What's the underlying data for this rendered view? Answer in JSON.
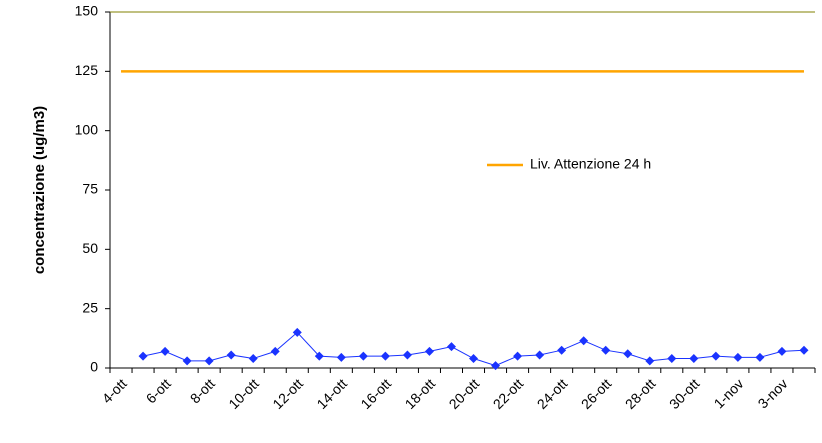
{
  "chart_data": {
    "type": "line",
    "y_label": "concentrazione (ug/m3)",
    "categories": [
      "4-ott",
      null,
      "6-ott",
      null,
      "8-ott",
      null,
      "10-ott",
      null,
      "12-ott",
      null,
      "14-ott",
      null,
      "16-ott",
      null,
      "18-ott",
      null,
      "20-ott",
      null,
      "22-ott",
      null,
      "24-ott",
      null,
      "26-ott",
      null,
      "28-ott",
      null,
      "30-ott",
      null,
      "1-nov",
      null,
      "3-nov",
      null
    ],
    "series": [
      {
        "color": "#1a33ff",
        "marker": "diamond",
        "values": [
          null,
          5,
          7,
          3,
          3,
          5.5,
          4,
          7,
          15,
          5,
          4.5,
          5,
          5,
          5.5,
          7,
          9,
          4,
          1,
          5,
          5.5,
          7.5,
          11.5,
          7.5,
          6,
          3,
          4,
          4,
          5,
          4.5,
          4.5,
          7,
          7.5
        ]
      },
      {
        "name": "Liv. Attenzione 24 h",
        "color": "#ffa500",
        "marker": "none",
        "values": [
          125,
          125,
          125,
          125,
          125,
          125,
          125,
          125,
          125,
          125,
          125,
          125,
          125,
          125,
          125,
          125,
          125,
          125,
          125,
          125,
          125,
          125,
          125,
          125,
          125,
          125,
          125,
          125,
          125,
          125,
          125,
          125
        ]
      }
    ],
    "ylim": [
      0,
      150
    ],
    "yticks": [
      0,
      25,
      50,
      75,
      100,
      125,
      150
    ],
    "grid": false,
    "legend": "center-right"
  }
}
